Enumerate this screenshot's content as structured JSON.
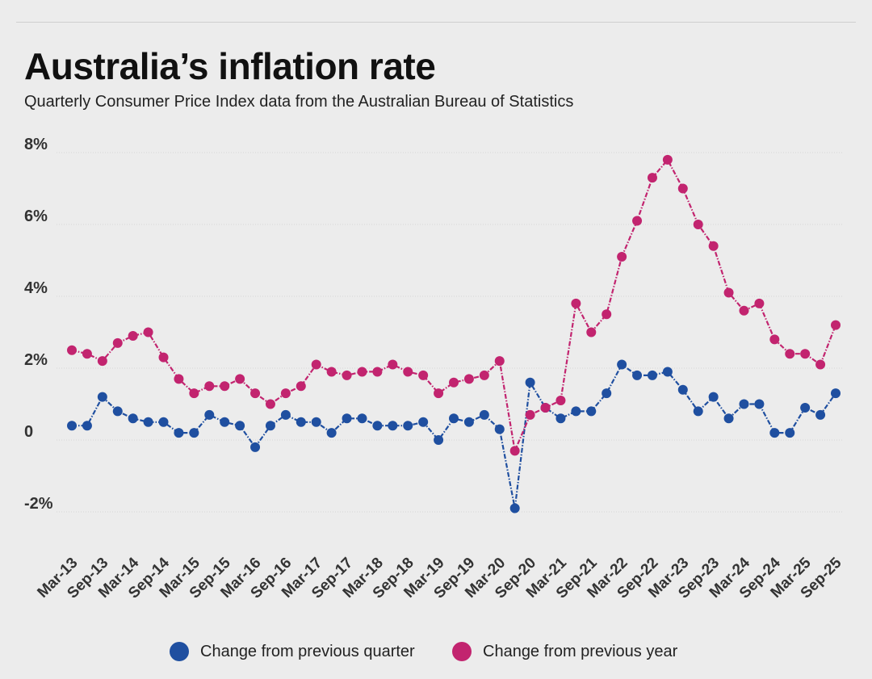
{
  "header": {
    "title": "Australia’s inflation rate",
    "subtitle": "Quarterly Consumer Price Index data from the Australian Bureau of Statistics"
  },
  "legend": {
    "position": "bottom",
    "items": [
      {
        "label": "Change from previous quarter",
        "color": "#1f4fa0"
      },
      {
        "label": "Change from previous year",
        "color": "#c2246f"
      }
    ]
  },
  "chart_data": {
    "type": "line",
    "title": "Australia’s inflation rate",
    "subtitle": "Quarterly Consumer Price Index data from the Australian Bureau of Statistics",
    "xlabel": "",
    "ylabel": "",
    "ylim": [
      -3,
      8
    ],
    "yticks": [
      -2,
      0,
      2,
      4,
      6,
      8
    ],
    "ytick_labels": [
      "-2%",
      "0",
      "2%",
      "4%",
      "6%",
      "8%"
    ],
    "grid": true,
    "legend_placement": "bottom",
    "categories": [
      "Mar-13",
      "Jun-13",
      "Sep-13",
      "Dec-13",
      "Mar-14",
      "Jun-14",
      "Sep-14",
      "Dec-14",
      "Mar-15",
      "Jun-15",
      "Sep-15",
      "Dec-15",
      "Mar-16",
      "Jun-16",
      "Sep-16",
      "Dec-16",
      "Mar-17",
      "Jun-17",
      "Sep-17",
      "Dec-17",
      "Mar-18",
      "Jun-18",
      "Sep-18",
      "Dec-18",
      "Mar-19",
      "Jun-19",
      "Sep-19",
      "Dec-19",
      "Mar-20",
      "Jun-20",
      "Sep-20",
      "Dec-20",
      "Mar-21",
      "Jun-21",
      "Sep-21",
      "Dec-21",
      "Mar-22",
      "Jun-22",
      "Sep-22",
      "Dec-22",
      "Mar-23",
      "Jun-23",
      "Sep-23",
      "Dec-23",
      "Mar-24",
      "Jun-24",
      "Sep-24",
      "Dec-24",
      "Mar-25",
      "Jun-25",
      "Sep-25"
    ],
    "tick_labels": [
      "Mar-13",
      "Sep-13",
      "Mar-14",
      "Sep-14",
      "Mar-15",
      "Sep-15",
      "Mar-16",
      "Sep-16",
      "Mar-17",
      "Sep-17",
      "Mar-18",
      "Sep-18",
      "Mar-19",
      "Sep-19",
      "Mar-20",
      "Sep-20",
      "Mar-21",
      "Sep-21",
      "Mar-22",
      "Sep-22",
      "Mar-23",
      "Sep-23",
      "Mar-24",
      "Sep-24",
      "Mar-25",
      "Sep-25"
    ],
    "series": [
      {
        "name": "Change from previous quarter",
        "color": "#1f4fa0",
        "values": [
          0.4,
          0.4,
          1.2,
          0.8,
          0.6,
          0.5,
          0.5,
          0.2,
          0.2,
          0.7,
          0.5,
          0.4,
          -0.2,
          0.4,
          0.7,
          0.5,
          0.5,
          0.2,
          0.6,
          0.6,
          0.4,
          0.4,
          0.4,
          0.5,
          0.0,
          0.6,
          0.5,
          0.7,
          0.3,
          -1.9,
          1.6,
          0.9,
          0.6,
          0.8,
          0.8,
          1.3,
          2.1,
          1.8,
          1.8,
          1.9,
          1.4,
          0.8,
          1.2,
          0.6,
          1.0,
          1.0,
          0.2,
          0.2,
          0.9,
          0.7,
          1.3
        ]
      },
      {
        "name": "Change from previous year",
        "color": "#c2246f",
        "values": [
          2.5,
          2.4,
          2.2,
          2.7,
          2.9,
          3.0,
          2.3,
          1.7,
          1.3,
          1.5,
          1.5,
          1.7,
          1.3,
          1.0,
          1.3,
          1.5,
          2.1,
          1.9,
          1.8,
          1.9,
          1.9,
          2.1,
          1.9,
          1.8,
          1.3,
          1.6,
          1.7,
          1.8,
          2.2,
          -0.3,
          0.7,
          0.9,
          1.1,
          3.8,
          3.0,
          3.5,
          5.1,
          6.1,
          7.3,
          7.8,
          7.0,
          6.0,
          5.4,
          4.1,
          3.6,
          3.8,
          2.8,
          2.4,
          2.4,
          2.1,
          3.2
        ]
      }
    ]
  }
}
